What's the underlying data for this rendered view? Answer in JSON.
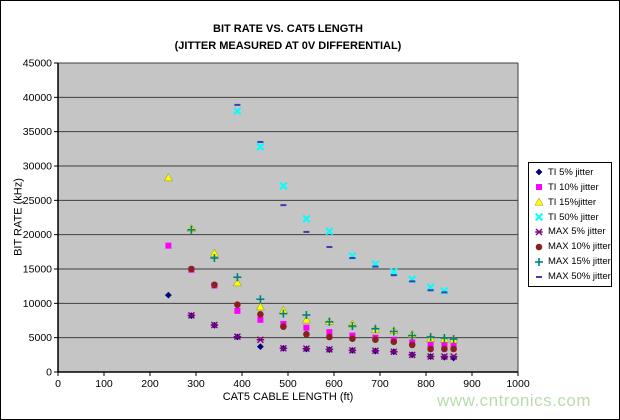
{
  "figure": {
    "watermark": "www.cntronics.com"
  },
  "colors": {
    "plot_background": "#C5C5C5",
    "gridline": "#3F3F3F",
    "axis": "#000000",
    "watermark_green": "#B9DCAE",
    "legend_border": "#000000"
  },
  "chart_data": {
    "type": "scatter",
    "title": "BIT RATE VS. CAT5 LENGTH",
    "subtitle": "(JITTER MEASURED AT 0V DIFFERENTIAL)",
    "xlabel": "CAT5 CABLE LENGTH (ft)",
    "ylabel": "BIT RATE (kHz)",
    "xlim": [
      0,
      1000
    ],
    "ylim": [
      0,
      45000
    ],
    "xticks": [
      0,
      100,
      200,
      300,
      400,
      500,
      600,
      700,
      800,
      900,
      1000
    ],
    "yticks": [
      0,
      5000,
      10000,
      15000,
      20000,
      25000,
      30000,
      35000,
      40000,
      45000
    ],
    "grid": "horizontal-only",
    "legend_position": "right",
    "series": [
      {
        "name": "TI 5% jitter",
        "marker": "diamond",
        "color": "#000080",
        "points": [
          [
            240,
            11200
          ],
          [
            290,
            8200
          ],
          [
            340,
            6800
          ],
          [
            390,
            5100
          ],
          [
            440,
            3700
          ],
          [
            490,
            3450
          ],
          [
            540,
            3350
          ],
          [
            590,
            3250
          ],
          [
            640,
            3150
          ],
          [
            690,
            3050
          ],
          [
            730,
            2950
          ],
          [
            770,
            2500
          ],
          [
            810,
            2250
          ],
          [
            840,
            2150
          ],
          [
            860,
            2050
          ]
        ]
      },
      {
        "name": "TI 10% jitter",
        "marker": "square",
        "color": "#FF00FF",
        "points": [
          [
            240,
            18400
          ],
          [
            290,
            14900
          ],
          [
            340,
            12600
          ],
          [
            390,
            8900
          ],
          [
            440,
            7600
          ],
          [
            490,
            7000
          ],
          [
            540,
            6450
          ],
          [
            590,
            5800
          ],
          [
            640,
            5300
          ],
          [
            690,
            5000
          ],
          [
            730,
            4700
          ],
          [
            770,
            4300
          ],
          [
            810,
            3930
          ],
          [
            840,
            3930
          ],
          [
            860,
            3800
          ]
        ]
      },
      {
        "name": "TI 15%jitter",
        "marker": "triangle",
        "color": "#FFFF00",
        "points": [
          [
            240,
            28300
          ],
          [
            290,
            20900
          ],
          [
            340,
            17300
          ],
          [
            390,
            13000
          ],
          [
            440,
            9500
          ],
          [
            490,
            9000
          ],
          [
            540,
            7600
          ],
          [
            590,
            7400
          ],
          [
            640,
            7000
          ],
          [
            690,
            6200
          ],
          [
            730,
            6050
          ],
          [
            770,
            5500
          ],
          [
            810,
            4900
          ],
          [
            840,
            4800
          ],
          [
            860,
            4700
          ]
        ]
      },
      {
        "name": "TI 50% jitter",
        "marker": "x",
        "color": "#00FFFF",
        "points": [
          [
            390,
            38000
          ],
          [
            440,
            32800
          ],
          [
            490,
            27100
          ],
          [
            540,
            22300
          ],
          [
            590,
            20500
          ],
          [
            640,
            16900
          ],
          [
            690,
            15700
          ],
          [
            730,
            14600
          ],
          [
            770,
            13500
          ],
          [
            810,
            12350
          ],
          [
            840,
            11800
          ]
        ]
      },
      {
        "name": "MAX 5% jitter",
        "marker": "star",
        "color": "#800080",
        "points": [
          [
            290,
            8250
          ],
          [
            340,
            6850
          ],
          [
            390,
            5150
          ],
          [
            440,
            4700
          ],
          [
            490,
            3450
          ],
          [
            540,
            3400
          ],
          [
            590,
            3300
          ],
          [
            640,
            3150
          ],
          [
            690,
            3100
          ],
          [
            730,
            2950
          ],
          [
            770,
            2500
          ],
          [
            810,
            2250
          ],
          [
            840,
            2250
          ],
          [
            860,
            2250
          ]
        ]
      },
      {
        "name": "MAX 10% jitter",
        "marker": "circle",
        "color": "#8B2020",
        "points": [
          [
            290,
            15000
          ],
          [
            340,
            12700
          ],
          [
            390,
            9800
          ],
          [
            440,
            8400
          ],
          [
            490,
            6600
          ],
          [
            540,
            5500
          ],
          [
            590,
            5100
          ],
          [
            640,
            4850
          ],
          [
            690,
            4700
          ],
          [
            730,
            4400
          ],
          [
            770,
            3950
          ],
          [
            810,
            3350
          ],
          [
            840,
            3350
          ],
          [
            860,
            3350
          ]
        ]
      },
      {
        "name": "MAX 15% jitter",
        "marker": "plus",
        "color": "#008080",
        "points": [
          [
            290,
            20700
          ],
          [
            340,
            16600
          ],
          [
            390,
            13800
          ],
          [
            440,
            10600
          ],
          [
            490,
            8500
          ],
          [
            540,
            8300
          ],
          [
            590,
            7300
          ],
          [
            640,
            6700
          ],
          [
            690,
            6300
          ],
          [
            730,
            5900
          ],
          [
            770,
            5300
          ],
          [
            810,
            5100
          ],
          [
            840,
            4950
          ],
          [
            860,
            4800
          ]
        ]
      },
      {
        "name": "MAX 50% jitter",
        "marker": "dash",
        "color": "#3E3EB0",
        "points": [
          [
            390,
            38900
          ],
          [
            440,
            33500
          ],
          [
            490,
            24300
          ],
          [
            540,
            20400
          ],
          [
            590,
            18200
          ],
          [
            640,
            16600
          ],
          [
            690,
            15350
          ],
          [
            730,
            14100
          ],
          [
            770,
            13200
          ],
          [
            810,
            11900
          ],
          [
            840,
            11600
          ]
        ]
      }
    ]
  }
}
